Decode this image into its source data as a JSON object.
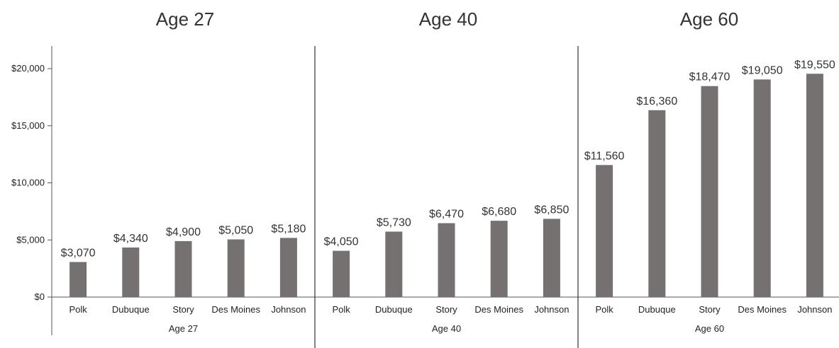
{
  "chart_data": {
    "type": "bar",
    "title": "",
    "ylabel": "",
    "ylim": [
      0,
      22000
    ],
    "yticks": [
      {
        "value": 0,
        "label": "$0"
      },
      {
        "value": 5000,
        "label": "$5,000"
      },
      {
        "value": 10000,
        "label": "$10,000"
      },
      {
        "value": 15000,
        "label": "$15,000"
      },
      {
        "value": 20000,
        "label": "$20,000"
      }
    ],
    "grid": false,
    "legend": "none",
    "bar_color": "#757171",
    "groups": [
      {
        "title": "Age 27",
        "label": "Age 27",
        "categories": [
          "Polk",
          "Dubuque",
          "Story",
          "Des Moines",
          "Johnson"
        ],
        "values": [
          3070,
          4340,
          4900,
          5050,
          5180
        ],
        "value_labels": [
          "$3,070",
          "$4,340",
          "$4,900",
          "$5,050",
          "$5,180"
        ]
      },
      {
        "title": "Age 40",
        "label": "Age 40",
        "categories": [
          "Polk",
          "Dubuque",
          "Story",
          "Des Moines",
          "Johnson"
        ],
        "values": [
          4050,
          5730,
          6470,
          6680,
          6850
        ],
        "value_labels": [
          "$4,050",
          "$5,730",
          "$6,470",
          "$6,680",
          "$6,850"
        ]
      },
      {
        "title": "Age 60",
        "label": "Age 60",
        "categories": [
          "Polk",
          "Dubuque",
          "Story",
          "Des Moines",
          "Johnson"
        ],
        "values": [
          11560,
          16360,
          18470,
          19050,
          19550
        ],
        "value_labels": [
          "$11,560",
          "$16,360",
          "$18,470",
          "$19,050",
          "$19,550"
        ]
      }
    ]
  }
}
